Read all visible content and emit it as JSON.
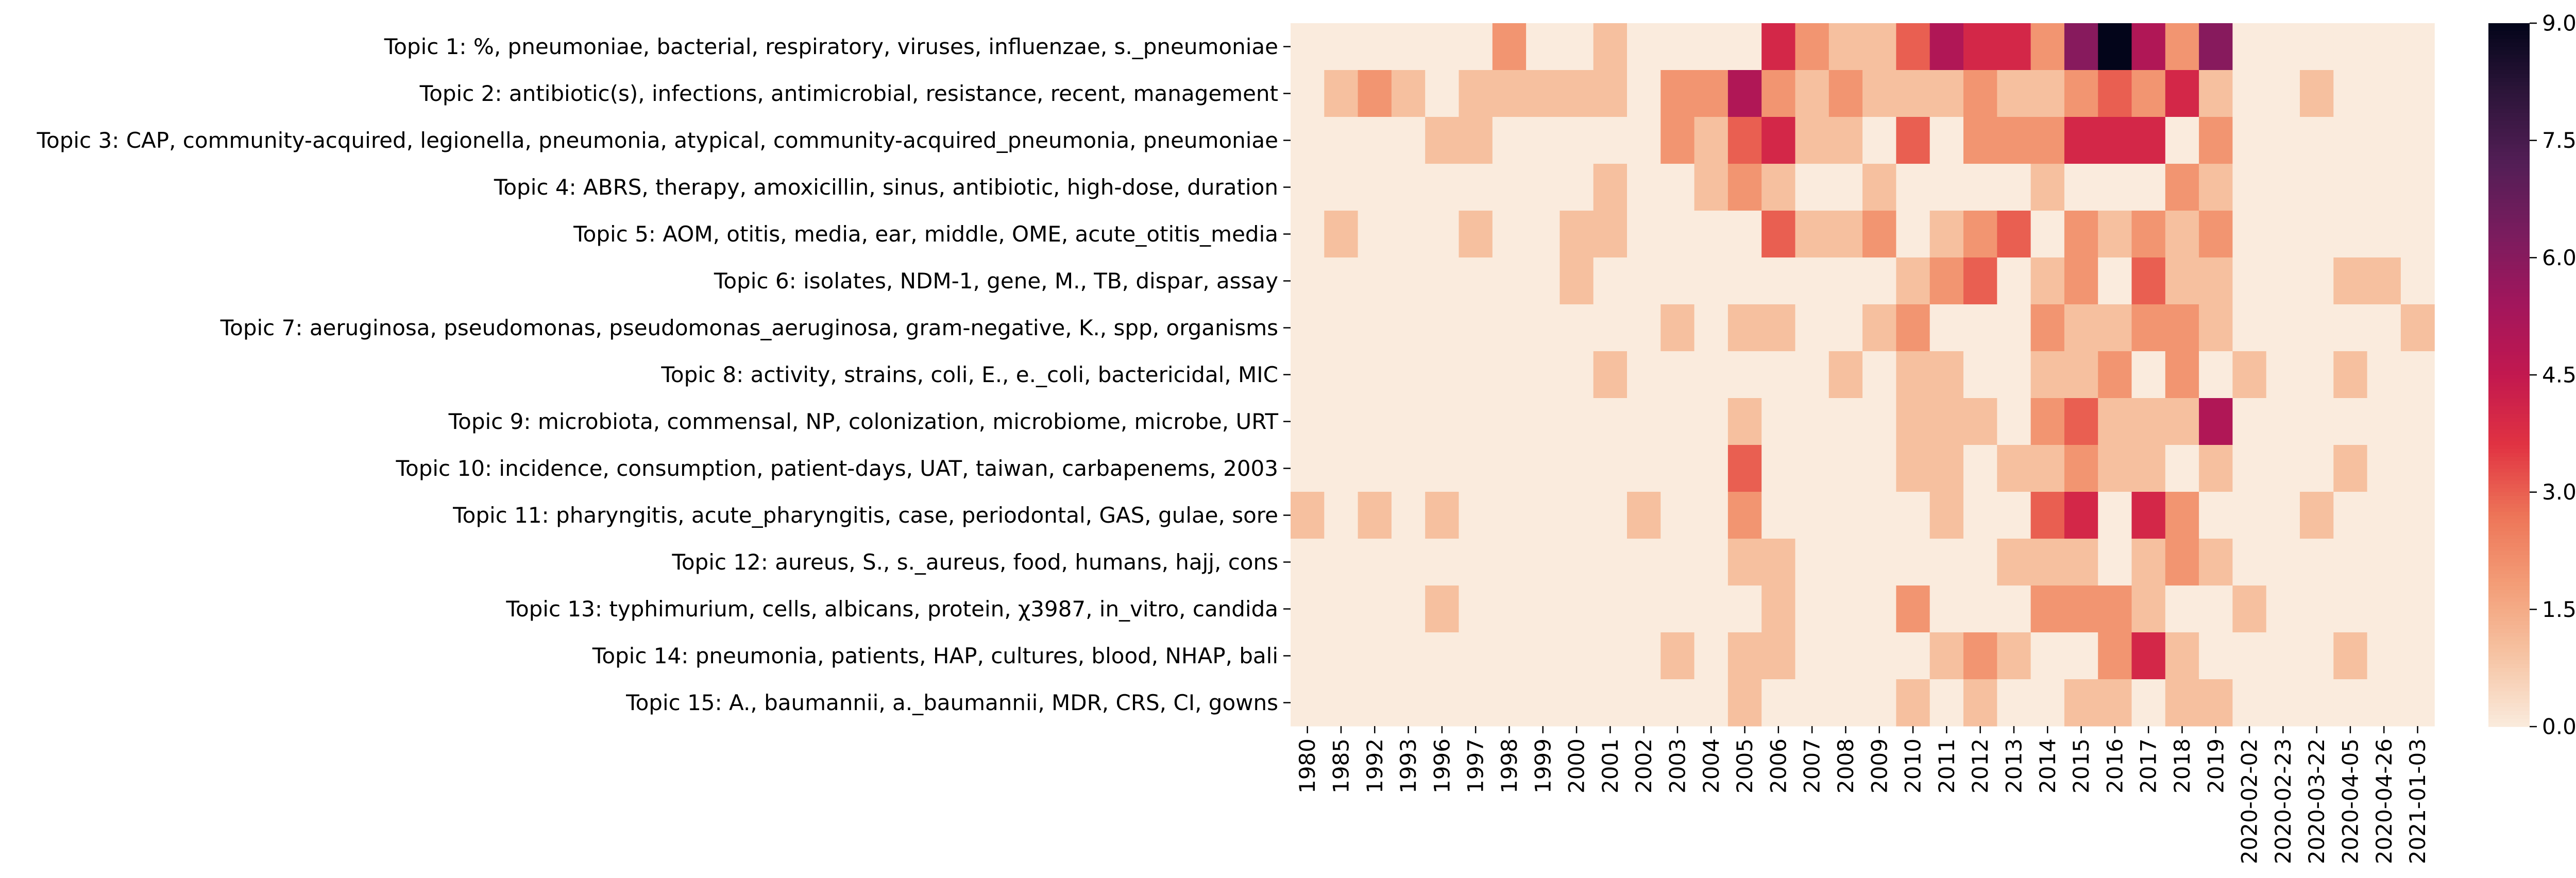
{
  "chart_data": {
    "type": "heatmap",
    "title": "",
    "xlabel": "",
    "ylabel": "",
    "columns": [
      "1980",
      "1985",
      "1992",
      "1993",
      "1996",
      "1997",
      "1998",
      "1999",
      "2000",
      "2001",
      "2002",
      "2003",
      "2004",
      "2005",
      "2006",
      "2007",
      "2008",
      "2009",
      "2010",
      "2011",
      "2012",
      "2013",
      "2014",
      "2015",
      "2016",
      "2017",
      "2018",
      "2019",
      "2020-02-02",
      "2020-02-23",
      "2020-03-22",
      "2020-04-05",
      "2020-04-26",
      "2021-01-03"
    ],
    "rows": [
      "Topic 1: %, pneumoniae, bacterial, respiratory, viruses, influenzae, s._pneumoniae",
      "Topic 2: antibiotic(s), infections, antimicrobial, resistance, recent, management",
      "Topic 3: CAP, community-acquired, legionella, pneumonia, atypical, community-acquired_pneumonia, pneumoniae",
      "Topic 4: ABRS, therapy, amoxicillin, sinus, antibiotic, high-dose, duration",
      "Topic 5: AOM, otitis, media, ear, middle, OME, acute_otitis_media",
      "Topic 6: isolates, NDM-1, gene, M., TB, dispar, assay",
      "Topic 7: aeruginosa, pseudomonas, pseudomonas_aeruginosa, gram-negative, K., spp, organisms",
      "Topic 8: activity, strains, coli, E., e._coli, bactericidal, MIC",
      "Topic 9: microbiota, commensal, NP, colonization, microbiome, microbe, URT",
      "Topic 10: incidence, consumption, patient-days, UAT, taiwan, carbapenems, 2003",
      "Topic 11: pharyngitis, acute_pharyngitis, case, periodontal, GAS, gulae, sore",
      "Topic 12: aureus, S., s._aureus, food, humans, hajj, cons",
      "Topic 13: typhimurium, cells, albicans, protein, χ3987, in_vitro, candida",
      "Topic 14: pneumonia, patients, HAP, cultures, blood, NHAP, bali",
      "Topic 15: A., baumannii, a._baumannii, MDR, CRS, CI, gowns"
    ],
    "values": [
      [
        0,
        0,
        0,
        0,
        0,
        0,
        2,
        0,
        0,
        1,
        0,
        0,
        0,
        0,
        4,
        2,
        1,
        1,
        3,
        5,
        4,
        4,
        2,
        6,
        9,
        5,
        2,
        6,
        0,
        0,
        0,
        0,
        0,
        0
      ],
      [
        0,
        1,
        2,
        1,
        0,
        1,
        1,
        1,
        1,
        1,
        0,
        2,
        2,
        5,
        2,
        1,
        2,
        1,
        1,
        1,
        2,
        1,
        1,
        2,
        3,
        2,
        4,
        1,
        0,
        0,
        1,
        0,
        0,
        0
      ],
      [
        0,
        0,
        0,
        0,
        1,
        1,
        0,
        0,
        0,
        0,
        0,
        2,
        1,
        3,
        4,
        1,
        1,
        0,
        3,
        0,
        2,
        2,
        2,
        4,
        4,
        4,
        0,
        2,
        0,
        0,
        0,
        0,
        0,
        0
      ],
      [
        0,
        0,
        0,
        0,
        0,
        0,
        0,
        0,
        0,
        1,
        0,
        0,
        1,
        2,
        1,
        0,
        0,
        1,
        0,
        0,
        0,
        0,
        1,
        0,
        0,
        0,
        2,
        1,
        0,
        0,
        0,
        0,
        0,
        0
      ],
      [
        0,
        1,
        0,
        0,
        0,
        1,
        0,
        0,
        1,
        1,
        0,
        0,
        0,
        0,
        3,
        1,
        1,
        2,
        0,
        1,
        2,
        3,
        0,
        2,
        1,
        2,
        1,
        2,
        0,
        0,
        0,
        0,
        0,
        0
      ],
      [
        0,
        0,
        0,
        0,
        0,
        0,
        0,
        0,
        1,
        0,
        0,
        0,
        0,
        0,
        0,
        0,
        0,
        0,
        1,
        2,
        3,
        0,
        1,
        2,
        0,
        3,
        1,
        1,
        0,
        0,
        0,
        1,
        1,
        0
      ],
      [
        0,
        0,
        0,
        0,
        0,
        0,
        0,
        0,
        0,
        0,
        0,
        1,
        0,
        1,
        1,
        0,
        0,
        1,
        2,
        0,
        0,
        0,
        2,
        1,
        1,
        2,
        2,
        1,
        0,
        0,
        0,
        0,
        0,
        1
      ],
      [
        0,
        0,
        0,
        0,
        0,
        0,
        0,
        0,
        0,
        1,
        0,
        0,
        0,
        0,
        0,
        0,
        1,
        0,
        1,
        1,
        0,
        0,
        1,
        1,
        2,
        0,
        2,
        0,
        1,
        0,
        0,
        1,
        0,
        0
      ],
      [
        0,
        0,
        0,
        0,
        0,
        0,
        0,
        0,
        0,
        0,
        0,
        0,
        0,
        1,
        0,
        0,
        0,
        0,
        1,
        1,
        1,
        0,
        2,
        3,
        1,
        1,
        1,
        5,
        0,
        0,
        0,
        0,
        0,
        0
      ],
      [
        0,
        0,
        0,
        0,
        0,
        0,
        0,
        0,
        0,
        0,
        0,
        0,
        0,
        3,
        0,
        0,
        0,
        0,
        1,
        1,
        0,
        1,
        1,
        2,
        1,
        1,
        0,
        1,
        0,
        0,
        0,
        1,
        0,
        0
      ],
      [
        1,
        0,
        1,
        0,
        1,
        0,
        0,
        0,
        0,
        0,
        1,
        0,
        0,
        2,
        0,
        0,
        0,
        0,
        0,
        1,
        0,
        0,
        3,
        4,
        0,
        4,
        2,
        0,
        0,
        0,
        1,
        0,
        0,
        0
      ],
      [
        0,
        0,
        0,
        0,
        0,
        0,
        0,
        0,
        0,
        0,
        0,
        0,
        0,
        1,
        1,
        0,
        0,
        0,
        0,
        0,
        0,
        1,
        1,
        1,
        0,
        1,
        2,
        1,
        0,
        0,
        0,
        0,
        0,
        0
      ],
      [
        0,
        0,
        0,
        0,
        1,
        0,
        0,
        0,
        0,
        0,
        0,
        0,
        0,
        0,
        1,
        0,
        0,
        0,
        2,
        0,
        0,
        0,
        2,
        2,
        2,
        1,
        0,
        0,
        1,
        0,
        0,
        0,
        0,
        0
      ],
      [
        0,
        0,
        0,
        0,
        0,
        0,
        0,
        0,
        0,
        0,
        0,
        1,
        0,
        1,
        1,
        0,
        0,
        0,
        0,
        1,
        2,
        1,
        0,
        0,
        2,
        4,
        1,
        0,
        0,
        0,
        0,
        1,
        0,
        0
      ],
      [
        0,
        0,
        0,
        0,
        0,
        0,
        0,
        0,
        0,
        0,
        0,
        0,
        0,
        1,
        0,
        0,
        0,
        0,
        1,
        0,
        1,
        0,
        0,
        1,
        1,
        0,
        1,
        1,
        0,
        0,
        0,
        0,
        0,
        0
      ]
    ],
    "colorbar": {
      "min": 0,
      "max": 9,
      "tick_labels": [
        "0.0",
        "1.5",
        "3.0",
        "4.5",
        "6.0",
        "7.5",
        "9.0"
      ],
      "colormap": "rocket_r"
    },
    "colors": {
      "low": "#faebdd",
      "mid": "#e13342",
      "high": "#03051a"
    },
    "grid": false,
    "legend": "colorbar-right"
  }
}
